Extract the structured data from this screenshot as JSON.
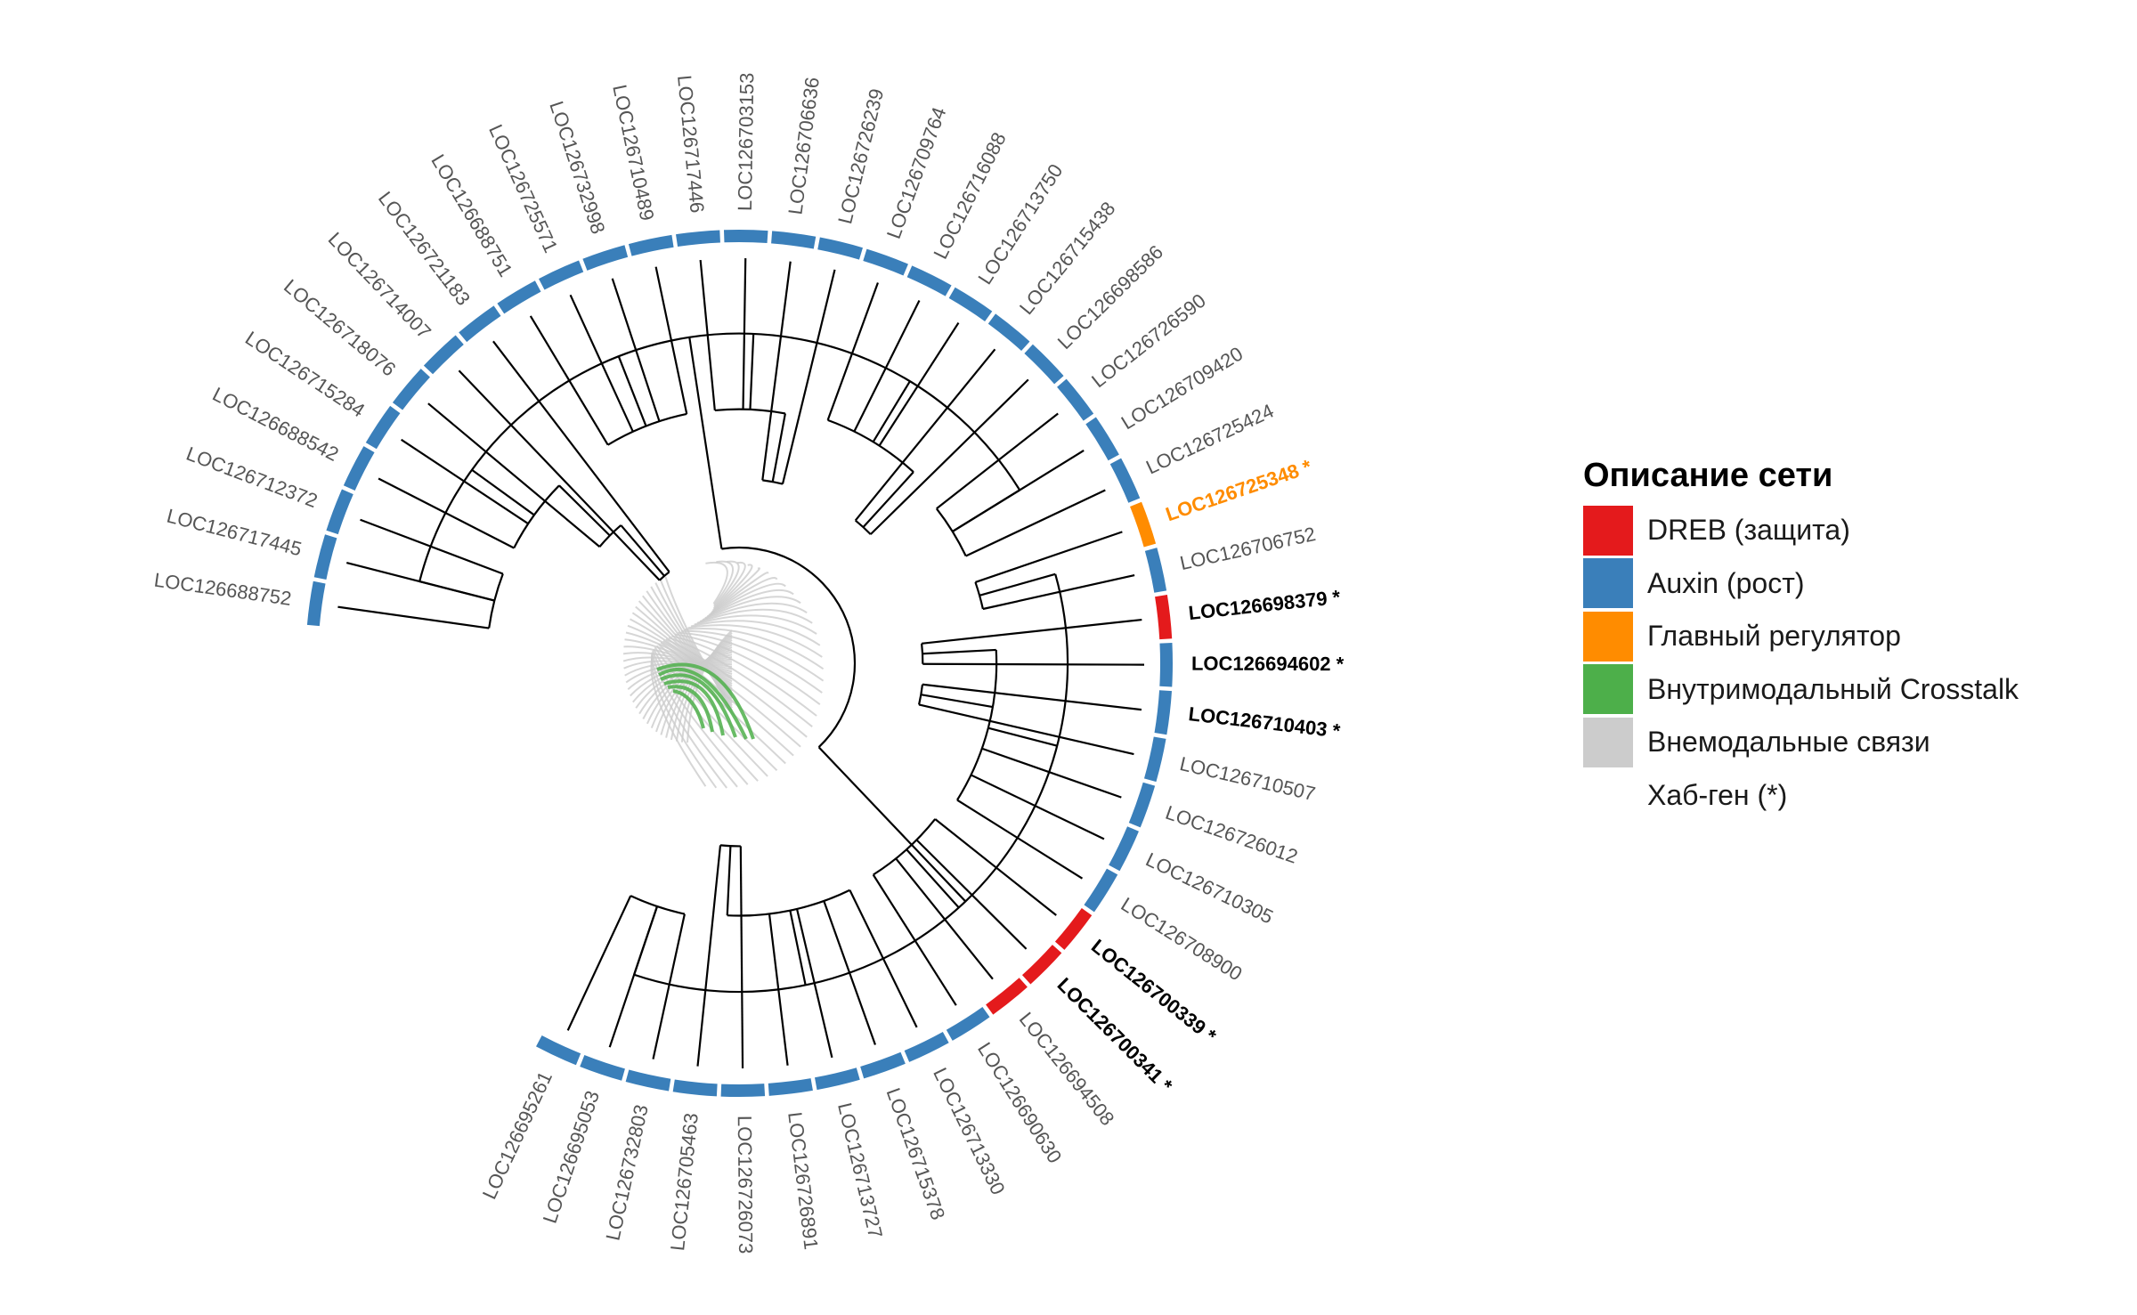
{
  "colors": {
    "dreb": "#e41a1c",
    "auxin": "#3a7fba",
    "regulator": "#ff8c00",
    "crosstalk": "#4daf4a",
    "intermodal": "#cccccc",
    "hub_label": "#000000",
    "leaf_label": "#555555",
    "tree": "#000000"
  },
  "chart_data": {
    "type": "circular dendrogram",
    "leaves": [
      {
        "label": "LOC126688752",
        "group": "auxin"
      },
      {
        "label": "LOC126717445",
        "group": "auxin"
      },
      {
        "label": "LOC126712372",
        "group": "auxin"
      },
      {
        "label": "LOC126688542",
        "group": "auxin"
      },
      {
        "label": "LOC126715284",
        "group": "auxin"
      },
      {
        "label": "LOC126718076",
        "group": "auxin"
      },
      {
        "label": "LOC126714007",
        "group": "auxin"
      },
      {
        "label": "LOC126721183",
        "group": "auxin"
      },
      {
        "label": "LOC126688751",
        "group": "auxin"
      },
      {
        "label": "LOC126725571",
        "group": "auxin"
      },
      {
        "label": "LOC126732998",
        "group": "auxin"
      },
      {
        "label": "LOC126710489",
        "group": "auxin"
      },
      {
        "label": "LOC126717446",
        "group": "auxin"
      },
      {
        "label": "LOC126703153",
        "group": "auxin"
      },
      {
        "label": "LOC126706636",
        "group": "auxin"
      },
      {
        "label": "LOC126726239",
        "group": "auxin"
      },
      {
        "label": "LOC126709764",
        "group": "auxin"
      },
      {
        "label": "LOC126716088",
        "group": "auxin"
      },
      {
        "label": "LOC126713750",
        "group": "auxin"
      },
      {
        "label": "LOC126715438",
        "group": "auxin"
      },
      {
        "label": "LOC126698586",
        "group": "auxin"
      },
      {
        "label": "LOC126726590",
        "group": "auxin"
      },
      {
        "label": "LOC126709420",
        "group": "auxin"
      },
      {
        "label": "LOC126725424",
        "group": "auxin"
      },
      {
        "label": "LOC126725348 *",
        "group": "regulator",
        "hub": true
      },
      {
        "label": "LOC126706752",
        "group": "auxin"
      },
      {
        "label": "LOC126698379 *",
        "group": "dreb",
        "hub": true
      },
      {
        "label": "LOC126694602 *",
        "group": "auxin",
        "hub": true
      },
      {
        "label": "LOC126710403 *",
        "group": "auxin",
        "hub": true
      },
      {
        "label": "LOC126710507",
        "group": "auxin"
      },
      {
        "label": "LOC126726012",
        "group": "auxin"
      },
      {
        "label": "LOC126710305",
        "group": "auxin"
      },
      {
        "label": "LOC126708900",
        "group": "auxin"
      },
      {
        "label": "LOC126700339 *",
        "group": "dreb",
        "hub": true
      },
      {
        "label": "LOC126700341 *",
        "group": "dreb",
        "hub": true
      },
      {
        "label": "LOC126694508",
        "group": "dreb"
      },
      {
        "label": "LOC126690630",
        "group": "auxin"
      },
      {
        "label": "LOC126713330",
        "group": "auxin"
      },
      {
        "label": "LOC126715378",
        "group": "auxin"
      },
      {
        "label": "LOC126713727",
        "group": "auxin"
      },
      {
        "label": "LOC126726891",
        "group": "auxin"
      },
      {
        "label": "LOC126726073",
        "group": "auxin"
      },
      {
        "label": "LOC126705463",
        "group": "auxin"
      },
      {
        "label": "LOC126732803",
        "group": "auxin"
      },
      {
        "label": "LOC126695053",
        "group": "auxin"
      },
      {
        "label": "LOC126695261",
        "group": "auxin"
      }
    ],
    "legend": {
      "title": "Описание сети",
      "placement": "right",
      "items": [
        {
          "label": "DREB (защита)",
          "color": "#e41a1c"
        },
        {
          "label": "Auxin (рост)",
          "color": "#3a7fba"
        },
        {
          "label": "Главный регулятор",
          "color": "#ff8c00"
        },
        {
          "label": "Внутримодальный Crosstalk",
          "color": "#4daf4a"
        },
        {
          "label": "Внемодальные связи",
          "color": "#cccccc"
        },
        {
          "label": "Хаб-ген (*)",
          "color": ""
        }
      ]
    }
  }
}
